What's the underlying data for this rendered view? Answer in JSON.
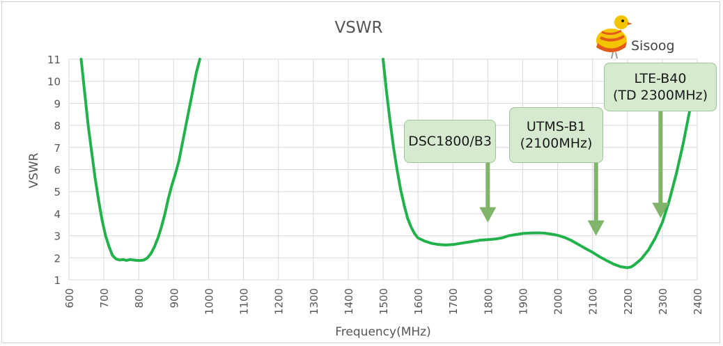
{
  "chart_data": {
    "type": "line",
    "title": "VSWR",
    "xlabel": "Frequency(MHz)",
    "ylabel": "VSWR",
    "xlim": [
      600,
      2400
    ],
    "ylim": [
      1,
      11
    ],
    "x_ticks": [
      "600",
      "700",
      "800",
      "900",
      "1000",
      "1100",
      "1200",
      "1300",
      "1400",
      "1500",
      "1600",
      "1700",
      "1800",
      "1900",
      "2000",
      "2100",
      "2200",
      "2300",
      "2400"
    ],
    "y_ticks": [
      "1",
      "2",
      "3",
      "4",
      "5",
      "6",
      "7",
      "8",
      "9",
      "10",
      "11"
    ],
    "grid": true,
    "series": [
      {
        "color": "#22b24c",
        "segments": [
          [
            [
              635,
              11
            ],
            [
              645,
              9.5
            ],
            [
              655,
              8
            ],
            [
              665,
              6.8
            ],
            [
              675,
              5.6
            ],
            [
              685,
              4.6
            ],
            [
              695,
              3.7
            ],
            [
              705,
              3
            ],
            [
              715,
              2.5
            ],
            [
              725,
              2.1
            ],
            [
              735,
              1.95
            ],
            [
              745,
              1.9
            ],
            [
              755,
              1.92
            ],
            [
              765,
              1.88
            ],
            [
              775,
              1.92
            ],
            [
              785,
              1.9
            ],
            [
              795,
              1.88
            ],
            [
              805,
              1.88
            ],
            [
              815,
              1.9
            ],
            [
              825,
              2
            ],
            [
              835,
              2.2
            ],
            [
              845,
              2.5
            ],
            [
              855,
              2.9
            ],
            [
              865,
              3.4
            ],
            [
              875,
              4
            ],
            [
              885,
              4.7
            ],
            [
              895,
              5.3
            ],
            [
              905,
              5.8
            ],
            [
              915,
              6.4
            ],
            [
              925,
              7.2
            ],
            [
              935,
              8
            ],
            [
              945,
              8.8
            ],
            [
              955,
              9.6
            ],
            [
              965,
              10.4
            ],
            [
              975,
              11
            ]
          ],
          [
            [
              1500,
              11
            ],
            [
              1510,
              9.5
            ],
            [
              1520,
              8.2
            ],
            [
              1530,
              7
            ],
            [
              1540,
              6
            ],
            [
              1550,
              5.1
            ],
            [
              1560,
              4.4
            ],
            [
              1570,
              3.8
            ],
            [
              1580,
              3.4
            ],
            [
              1590,
              3.1
            ],
            [
              1600,
              2.9
            ],
            [
              1620,
              2.75
            ],
            [
              1640,
              2.65
            ],
            [
              1660,
              2.6
            ],
            [
              1680,
              2.58
            ],
            [
              1700,
              2.6
            ],
            [
              1720,
              2.65
            ],
            [
              1740,
              2.7
            ],
            [
              1760,
              2.75
            ],
            [
              1780,
              2.8
            ],
            [
              1800,
              2.82
            ],
            [
              1820,
              2.85
            ],
            [
              1840,
              2.9
            ],
            [
              1860,
              3
            ],
            [
              1880,
              3.05
            ],
            [
              1900,
              3.1
            ],
            [
              1920,
              3.12
            ],
            [
              1940,
              3.13
            ],
            [
              1960,
              3.12
            ],
            [
              1980,
              3.08
            ],
            [
              2000,
              3.02
            ],
            [
              2020,
              2.92
            ],
            [
              2040,
              2.78
            ],
            [
              2060,
              2.6
            ],
            [
              2080,
              2.42
            ],
            [
              2100,
              2.25
            ],
            [
              2120,
              2.05
            ],
            [
              2140,
              1.88
            ],
            [
              2160,
              1.72
            ],
            [
              2180,
              1.6
            ],
            [
              2200,
              1.55
            ],
            [
              2210,
              1.58
            ],
            [
              2220,
              1.68
            ],
            [
              2240,
              1.95
            ],
            [
              2260,
              2.35
            ],
            [
              2280,
              2.9
            ],
            [
              2300,
              3.6
            ],
            [
              2320,
              4.6
            ],
            [
              2340,
              5.8
            ],
            [
              2360,
              7.2
            ],
            [
              2380,
              8.8
            ],
            [
              2390,
              9.6
            ]
          ]
        ]
      }
    ],
    "annotations": [
      {
        "lines": [
          "DSC1800/B3"
        ],
        "target_x": 1800,
        "target_y": 3.6
      },
      {
        "lines": [
          "UTMS-B1",
          "(2100MHz)"
        ],
        "target_x": 2110,
        "target_y": 3.0
      },
      {
        "lines": [
          "LTE-B40",
          "(TD 2300MHz)"
        ],
        "target_x": 2295,
        "target_y": 3.8
      }
    ],
    "arrow_color": "#7fb46a"
  },
  "logo_text": "Sisoog"
}
